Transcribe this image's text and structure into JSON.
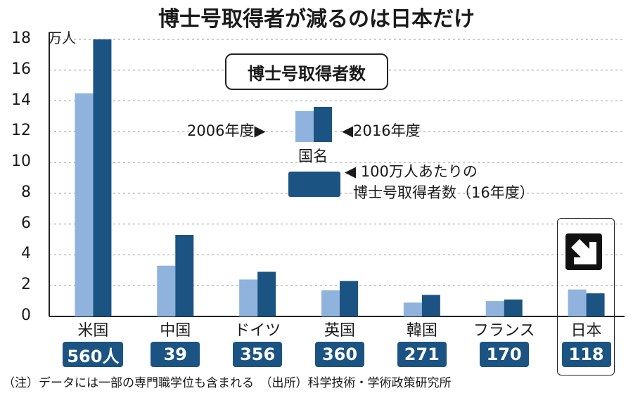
{
  "chart_data": {
    "type": "bar",
    "title": "博士号取得者が減るのは日本だけ",
    "unit_label": "万人",
    "ylim": [
      0,
      18
    ],
    "yticks": [
      "0",
      "2",
      "4",
      "6",
      "8",
      "10",
      "12",
      "14",
      "16",
      "18"
    ],
    "grid": "dashed-horizontal",
    "categories": [
      "米国",
      "中国",
      "ドイツ",
      "英国",
      "韓国",
      "フランス",
      "日本"
    ],
    "series": [
      {
        "name": "2006年度",
        "color": "#8fb3dc",
        "values": [
          14.5,
          3.3,
          2.4,
          1.7,
          0.9,
          1.0,
          1.75
        ]
      },
      {
        "name": "2016年度",
        "color": "#1b5382",
        "values": [
          18.0,
          5.3,
          2.9,
          2.3,
          1.4,
          1.1,
          1.5
        ]
      }
    ],
    "per_million": [
      "560人",
      "39",
      "356",
      "360",
      "271",
      "170",
      "118"
    ],
    "legend": {
      "box_title": "博士号取得者数",
      "label_2006": "2006年度▶",
      "label_2016": "◀2016年度",
      "country_label": "国名",
      "per_million_label_line1": "◀ 100万人あたりの",
      "per_million_label_line2": "博士号取得者数（16年度）"
    },
    "note": "（注）データには一部の専門職学位も含まれる　（出所）科学技術・学術政策研究所",
    "highlight": "日本",
    "highlight_icon": "down-right-arrow-icon"
  }
}
